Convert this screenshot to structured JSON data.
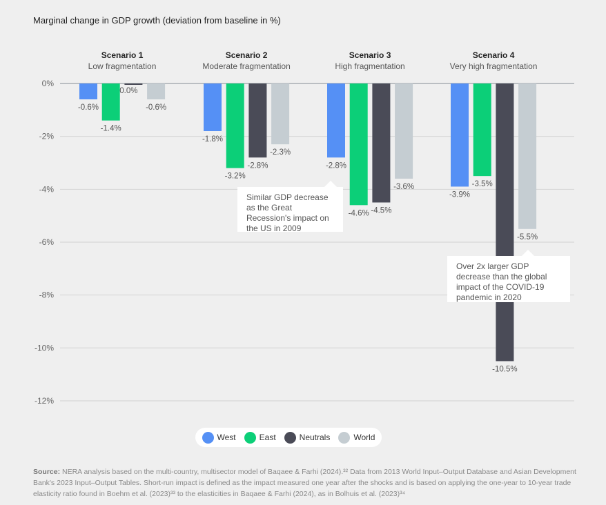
{
  "chart_data": {
    "type": "bar",
    "title": "Marginal change in GDP growth (deviation from baseline in %)",
    "groups": [
      {
        "name": "Scenario 1",
        "subtitle": "Low fragmentation"
      },
      {
        "name": "Scenario 2",
        "subtitle": "Moderate fragmentation"
      },
      {
        "name": "Scenario 3",
        "subtitle": "High fragmentation"
      },
      {
        "name": "Scenario 4",
        "subtitle": "Very high fragmentation"
      }
    ],
    "series": [
      {
        "name": "West",
        "color": "#5590f5",
        "values": [
          -0.6,
          -1.8,
          -2.8,
          -3.9
        ],
        "labels": [
          "-0.6%",
          "-1.8%",
          "-2.8%",
          "-3.9%"
        ]
      },
      {
        "name": "East",
        "color": "#0ccf78",
        "values": [
          -1.4,
          -3.2,
          -4.6,
          -3.5
        ],
        "labels": [
          "-1.4%",
          "-3.2%",
          "-4.6%",
          "-3.5%"
        ]
      },
      {
        "name": "Neutrals",
        "color": "#4a4b57",
        "values": [
          0.0,
          -2.8,
          -4.5,
          -10.5
        ],
        "labels": [
          "0.0%",
          "-2.8%",
          "-4.5%",
          "-10.5%"
        ]
      },
      {
        "name": "World",
        "color": "#c5cdd2",
        "values": [
          -0.6,
          -2.3,
          -3.6,
          -5.5
        ],
        "labels": [
          "-0.6%",
          "-2.3%",
          "-3.6%",
          "-5.5%"
        ]
      }
    ],
    "yticks": [
      "0%",
      "-2%",
      "-4%",
      "-6%",
      "-8%",
      "-10%",
      "-12%"
    ],
    "ylim": [
      -12,
      0
    ],
    "grid": true,
    "legend": "bottom-center",
    "annotations": [
      "Similar GDP decrease as the Great Recession's impact on the US in 2009",
      "Over 2x larger GDP decrease than the global impact of the COVID-19 pandemic in 2020"
    ]
  },
  "source": {
    "label": "Source:",
    "text": "NERA analysis based on the multi-country, multisector model of Baqaee & Farhi (2024).³² Data from 2013 World Input–Output Database and Asian Development Bank's 2023 Input–Output Tables. Short-run impact is defined as the impact measured one year after the shocks and is based on applying the one-year to 10-year trade elasticity ratio found in Boehm et al. (2023)³³ to the elasticities in Baqaee & Farhi (2024), as in Bolhuis et al. (2023)³⁴"
  }
}
